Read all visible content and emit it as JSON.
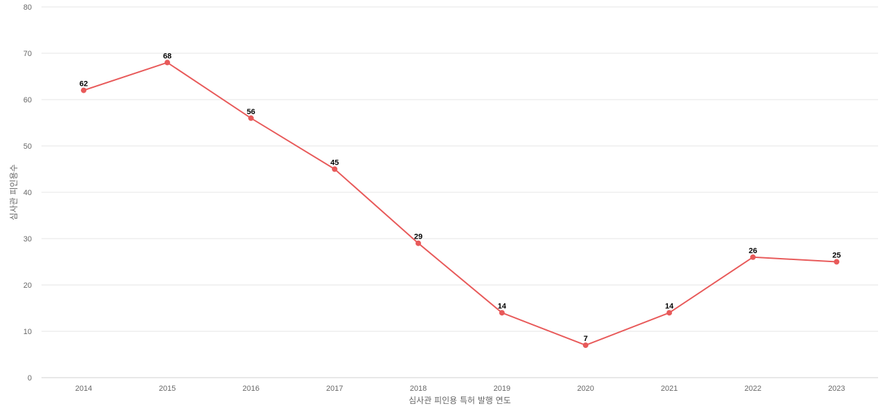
{
  "chart_data": {
    "type": "line",
    "title": "",
    "xlabel": "심사관 피인용 특허 발행 연도",
    "ylabel": "심사관 피인용수",
    "categories": [
      "2014",
      "2015",
      "2016",
      "2017",
      "2018",
      "2019",
      "2020",
      "2021",
      "2022",
      "2023"
    ],
    "series": [
      {
        "values": [
          62,
          68,
          56,
          45,
          29,
          14,
          7,
          14,
          26,
          25
        ],
        "color": "#e85a5a"
      }
    ],
    "ylim": [
      0,
      80
    ],
    "yticks": [
      "0",
      "10",
      "20",
      "30",
      "40",
      "50",
      "60",
      "70",
      "80"
    ],
    "grid": true,
    "data_labels": true,
    "legend": "none"
  }
}
